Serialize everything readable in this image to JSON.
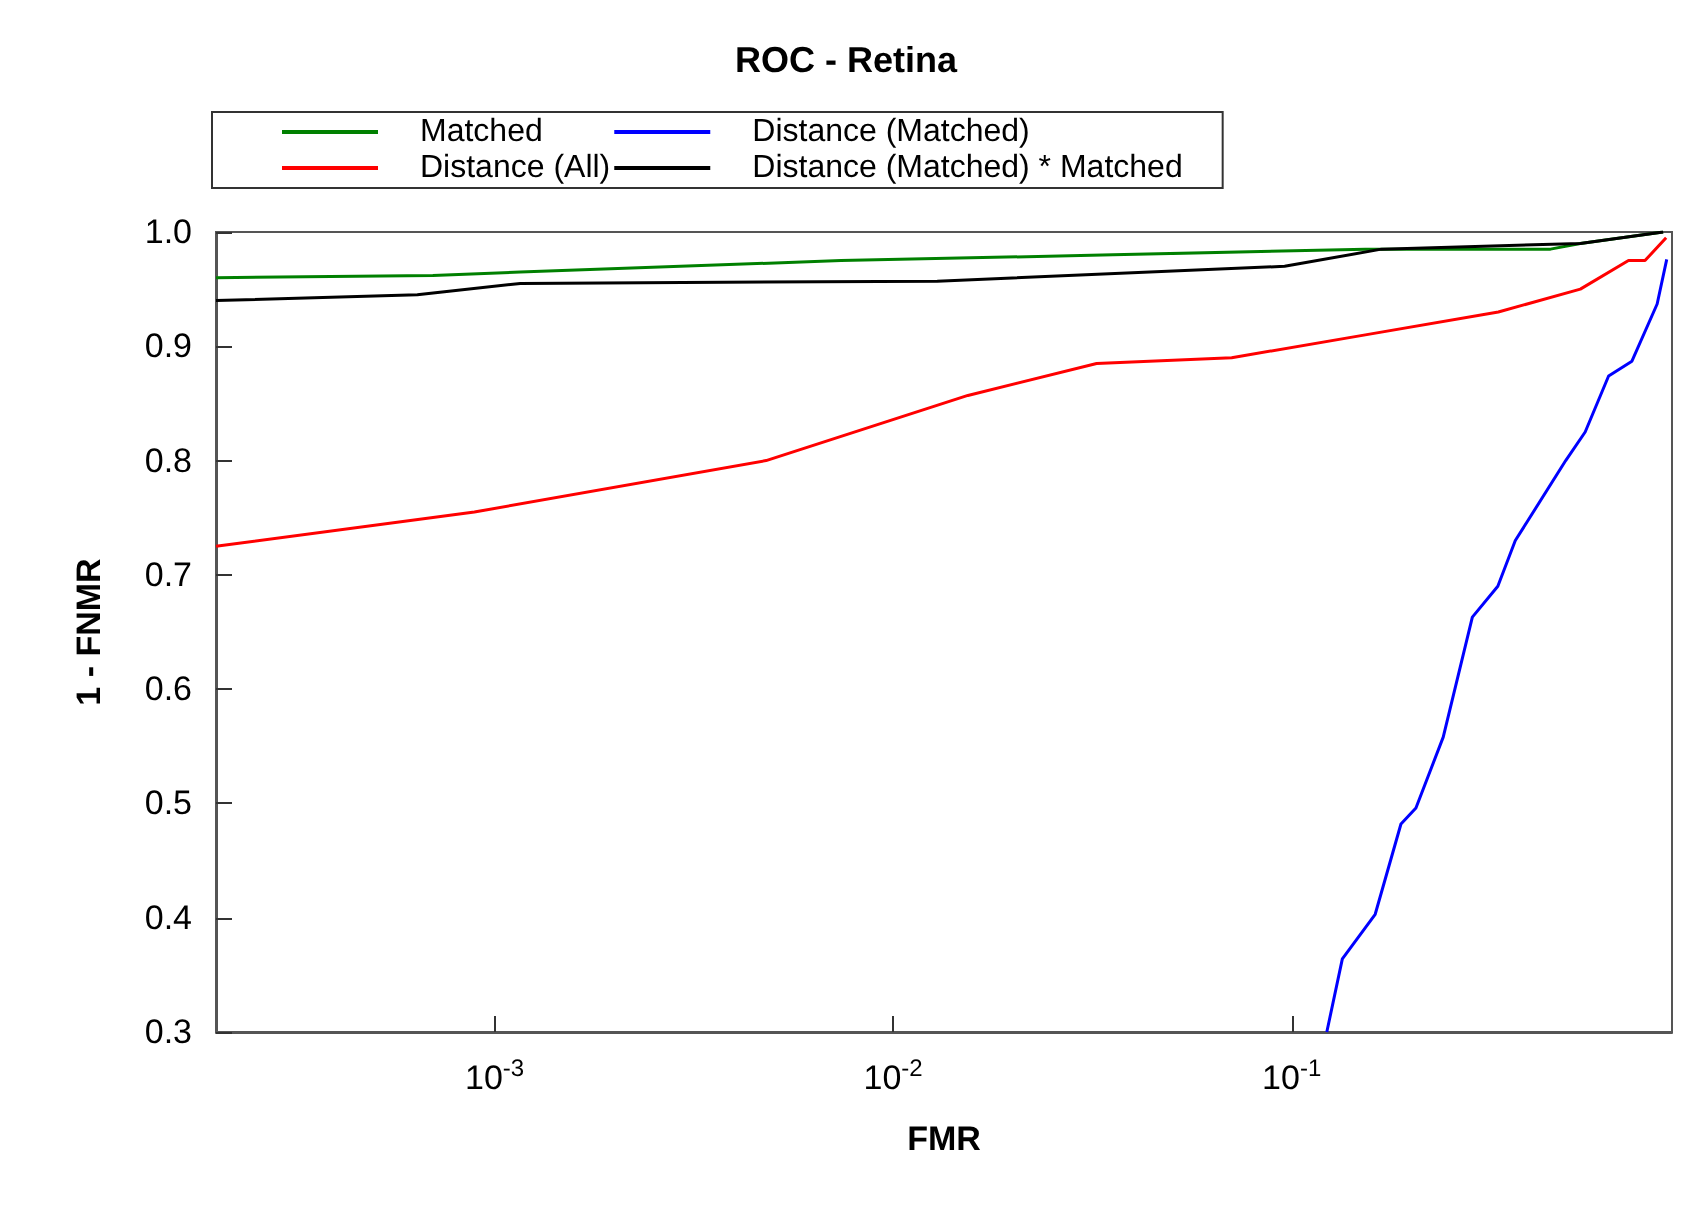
{
  "chart_data": {
    "type": "line",
    "title": "ROC - Retina",
    "xlabel": "FMR",
    "ylabel": "1 - FNMR",
    "log": "x",
    "xlim": [
      0.0002,
      0.9
    ],
    "ylim": [
      0.3,
      1.0
    ],
    "xticks": [
      {
        "value": 0.001,
        "label": "10$^{-3}$"
      },
      {
        "value": 0.01,
        "label": "10$^{-2}$"
      },
      {
        "value": 0.1,
        "label": "10$^{-1}$"
      }
    ],
    "yticks": [
      0.3,
      0.4,
      0.5,
      0.6,
      0.7,
      0.8,
      0.9,
      {
        "value": 1.0,
        "label": "1.0"
      }
    ],
    "legend": "top",
    "grid": false,
    "marker": "none",
    "line_style": "solid",
    "series": [
      {
        "name": "Matched",
        "color": "#008000",
        "x": [
          0.0002,
          0.0007,
          0.00116,
          0.0074,
          0.0356,
          0.153,
          0.446,
          0.53,
          0.855
        ],
        "values": [
          0.96,
          0.962,
          0.965,
          0.975,
          0.98,
          0.985,
          0.985,
          0.99,
          1.0
        ]
      },
      {
        "name": "Distance (All)",
        "color": "#ff0000",
        "x": [
          0.0002,
          0.00089,
          0.0048,
          0.0154,
          0.0324,
          0.0707,
          0.153,
          0.33,
          0.53,
          0.7,
          0.77,
          0.87
        ],
        "values": [
          0.725,
          0.755,
          0.8,
          0.857,
          0.885,
          0.89,
          0.91,
          0.93,
          0.95,
          0.975,
          0.975,
          0.995
        ]
      },
      {
        "name": "Distance (Matched)",
        "color": "#0000ff",
        "x": [
          0.1225,
          0.134,
          0.162,
          0.188,
          0.205,
          0.24,
          0.284,
          0.329,
          0.364,
          0.487,
          0.545,
          0.624,
          0.714,
          0.826,
          0.873
        ],
        "values": [
          0.3,
          0.364,
          0.403,
          0.482,
          0.496,
          0.558,
          0.663,
          0.69,
          0.73,
          0.8,
          0.825,
          0.874,
          0.887,
          0.937,
          0.976
        ]
      },
      {
        "name": "Distance (Matched) * Matched",
        "color": "#000000",
        "x": [
          0.0002,
          0.00064,
          0.00116,
          0.0129,
          0.096,
          0.168,
          0.53,
          0.855
        ],
        "values": [
          0.94,
          0.945,
          0.955,
          0.957,
          0.97,
          0.985,
          0.99,
          1.0
        ]
      }
    ]
  }
}
